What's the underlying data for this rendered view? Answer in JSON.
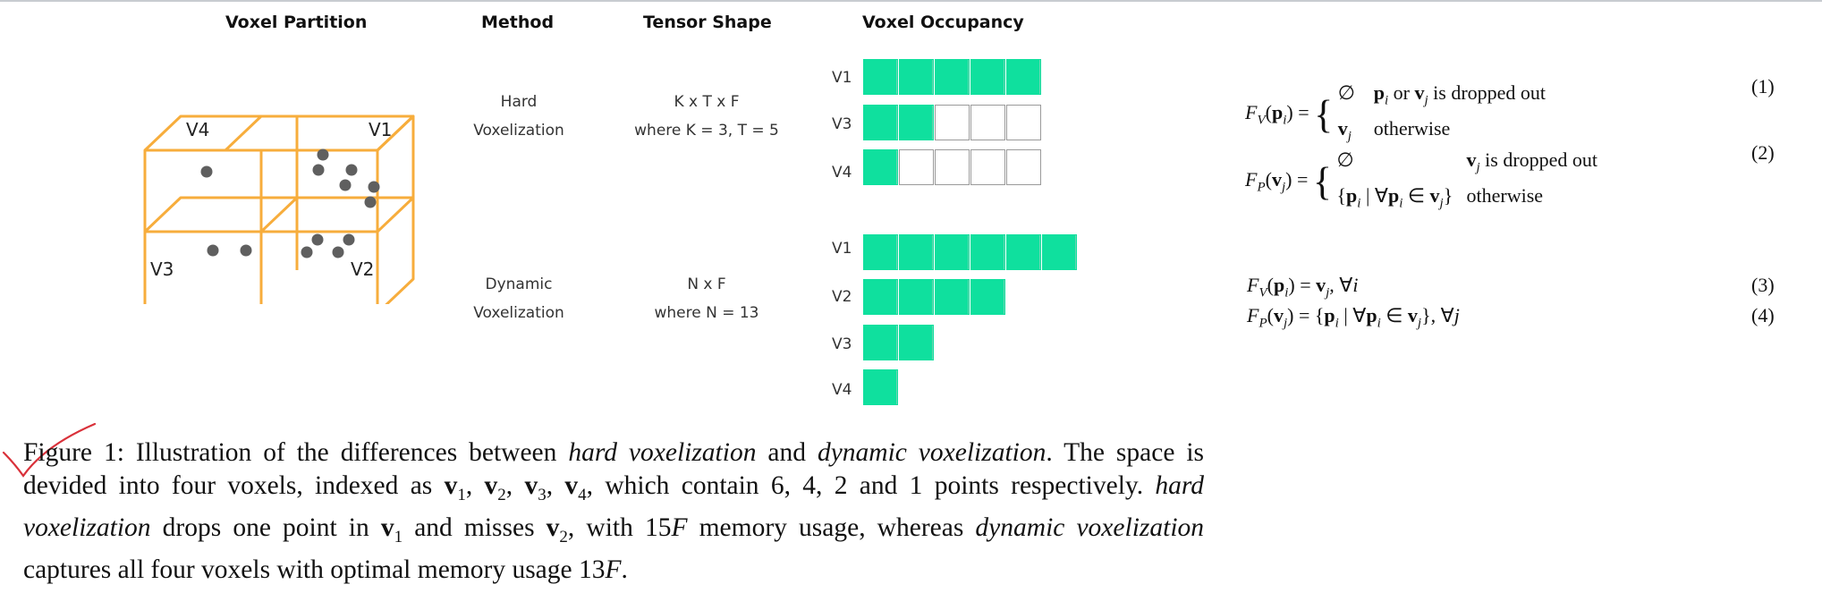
{
  "headers": {
    "partition": "Voxel Partition",
    "method": "Method",
    "shape": "Tensor Shape",
    "occupancy": "Voxel Occupancy"
  },
  "cube_labels": {
    "v4": "V4",
    "v1": "V1",
    "v3": "V3",
    "v2": "V2"
  },
  "hard": {
    "method_line1": "Hard",
    "method_line2": "Voxelization",
    "shape_line1": "K x T x F",
    "shape_line2": "where K = 3, T = 5",
    "rows": [
      {
        "label": "V1",
        "filled": 5,
        "capacity": 5
      },
      {
        "label": "V3",
        "filled": 2,
        "capacity": 5
      },
      {
        "label": "V4",
        "filled": 1,
        "capacity": 5
      }
    ]
  },
  "dynamic": {
    "method_line1": "Dynamic",
    "method_line2": "Voxelization",
    "shape_line1": "N x F",
    "shape_line2": "where N = 13",
    "rows": [
      {
        "label": "V1",
        "filled": 6,
        "capacity": 6
      },
      {
        "label": "V2",
        "filled": 4,
        "capacity": 4
      },
      {
        "label": "V3",
        "filled": 2,
        "capacity": 2
      },
      {
        "label": "V4",
        "filled": 1,
        "capacity": 1
      }
    ]
  },
  "colors": {
    "cube": "#f7ad3c",
    "point": "#5f5f5f",
    "filled": "#0fe09e",
    "empty_border": "#9a9a9a"
  },
  "equations": {
    "eq1_lhs": "F_V(p_i) = ",
    "eq1_case1_val": "∅",
    "eq1_case1_cond": "p_i or v_j is dropped out",
    "eq1_case2_val": "v_j",
    "eq1_case2_cond": "otherwise",
    "eq1_num": "(1)",
    "eq2_lhs": "F_P(v_j) = ",
    "eq2_case1_val": "∅",
    "eq2_case1_cond": "v_j is dropped out",
    "eq2_case2_val": "{p_i | ∀p_i ∈ v_j}",
    "eq2_case2_cond": "otherwise",
    "eq2_num": "(2)",
    "eq3": "F_V(p_i) = v_j, ∀i",
    "eq3_num": "(3)",
    "eq4": "F_P(v_j) = {p_i | ∀p_i ∈ v_j}, ∀j",
    "eq4_num": "(4)"
  },
  "caption": {
    "text": "Figure 1: Illustration of the differences between hard voxelization and dynamic voxelization. The space is devided into four voxels, indexed as v1, v2, v3, v4, which contain 6, 4, 2 and 1 points respectively. hard voxelization drops one point in v1 and misses v2, with 15F memory usage, whereas dynamic voxelization captures all four voxels with optimal memory usage 13F.",
    "label": "Figure 1:",
    "p1": "Illustration of the differences between",
    "hard": "hard voxelization",
    "and": "and",
    "dynamic": "dynamic voxelization",
    "p2": ". The space is devided into four voxels, indexed as",
    "v1": "v",
    "s1": "1",
    "v2": "v",
    "s2": "2",
    "v3": "v",
    "s3": "3",
    "v4": "v",
    "s4": "4",
    "p3": ", which contain 6, 4, 2 and 1 points respectively.",
    "hard2": "hard voxelization",
    "p4": "drops one point in",
    "v1b": "v",
    "s1b": "1",
    "p5": "and misses",
    "v2b": "v",
    "s2b": "2",
    "p6": ", with 15",
    "F1": "F",
    "p7": "memory usage, whereas",
    "dynamic2": "dynamic voxelization",
    "p8": "captures all four voxels with optimal memory usage 13",
    "F2": "F",
    "p9": "."
  }
}
